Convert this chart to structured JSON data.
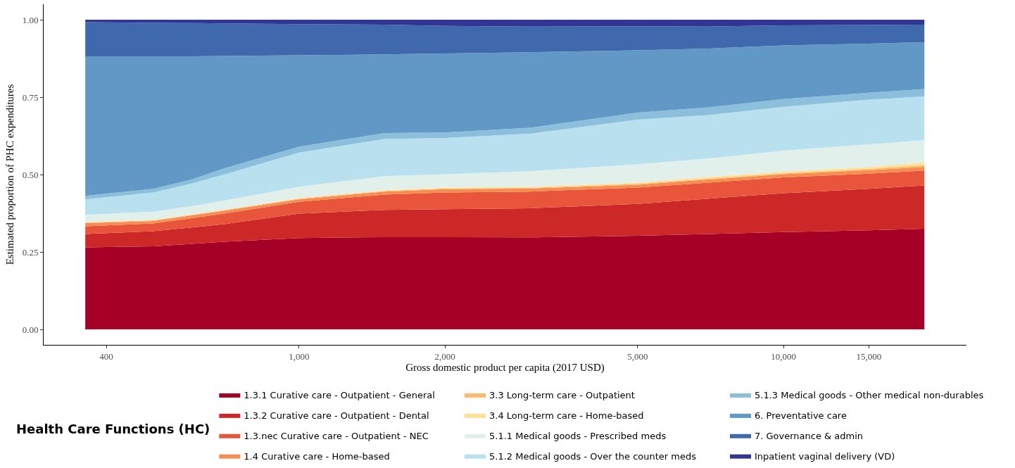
{
  "chart_data": {
    "type": "area",
    "stacked": true,
    "xlabel": "Gross domestic product per capita (2017 USD)",
    "ylabel": "Estimated proportion of PHC expenditures",
    "legend_title": "Health Care Functions (HC)",
    "legend": "bottom",
    "log": "x",
    "grid": false,
    "x": [
      362,
      500,
      600,
      700,
      1000,
      1500,
      2000,
      3000,
      5000,
      7000,
      10000,
      15000,
      19530
    ],
    "xlim": [
      297,
      23850
    ],
    "xticks": [
      400,
      {
        "value": 1000,
        "label": "1,000"
      },
      {
        "value": 2000,
        "label": "2,000"
      },
      {
        "value": 5000,
        "label": "5,000"
      },
      {
        "value": 10000,
        "label": "10,000"
      },
      {
        "value": 15000,
        "label": "15,000"
      }
    ],
    "ylim": [
      -0.05,
      1.05
    ],
    "yticks": [
      {
        "value": 0,
        "label": "0.00"
      },
      {
        "value": 0.25,
        "label": "0.25"
      },
      {
        "value": 0.5,
        "label": "0.50"
      },
      {
        "value": 0.75,
        "label": "0.75"
      },
      {
        "value": 1,
        "label": "1.00"
      }
    ],
    "series": [
      {
        "name": "1.3.1 Curative care - Outpatient - General",
        "color": "#a50026",
        "values": [
          0.265,
          0.268,
          0.276,
          0.283,
          0.295,
          0.298,
          0.298,
          0.297,
          0.302,
          0.308,
          0.314,
          0.32,
          0.325
        ]
      },
      {
        "name": "1.3.2 Curative care - Outpatient - Dental",
        "color": "#cc2827",
        "values": [
          0.043,
          0.049,
          0.053,
          0.057,
          0.079,
          0.088,
          0.09,
          0.094,
          0.103,
          0.114,
          0.126,
          0.134,
          0.14
        ]
      },
      {
        "name": "1.3.nec Curative care - Outpatient - NEC",
        "color": "#e8553a",
        "values": [
          0.025,
          0.025,
          0.03,
          0.034,
          0.038,
          0.049,
          0.054,
          0.054,
          0.053,
          0.052,
          0.051,
          0.049,
          0.048
        ]
      },
      {
        "name": "1.4 Curative care - Home-based",
        "color": "#f88d52",
        "values": [
          0.01,
          0.008,
          0.009,
          0.009,
          0.008,
          0.01,
          0.011,
          0.01,
          0.009,
          0.01,
          0.01,
          0.011,
          0.012
        ]
      },
      {
        "name": "3.3 Long-term care - Outpatient",
        "color": "#fdba6b",
        "values": [
          0.002,
          0.002,
          0.002,
          0.002,
          0.002,
          0.002,
          0.002,
          0.002,
          0.003,
          0.003,
          0.003,
          0.004,
          0.005
        ]
      },
      {
        "name": "3.4 Long-term care - Home-based",
        "color": "#fde196",
        "values": [
          0.001,
          0.001,
          0.001,
          0.001,
          0.002,
          0.002,
          0.003,
          0.003,
          0.004,
          0.005,
          0.005,
          0.006,
          0.009
        ]
      },
      {
        "name": "5.1.1 Medical goods - Prescribed meds",
        "color": "#e2f0ec",
        "values": [
          0.024,
          0.027,
          0.027,
          0.03,
          0.037,
          0.046,
          0.043,
          0.051,
          0.059,
          0.06,
          0.068,
          0.074,
          0.072
        ]
      },
      {
        "name": "5.1.2 Medical goods - Over the counter meds",
        "color": "#b8e0ee",
        "values": [
          0.05,
          0.062,
          0.073,
          0.084,
          0.11,
          0.12,
          0.117,
          0.121,
          0.144,
          0.14,
          0.142,
          0.144,
          0.141
        ]
      },
      {
        "name": "5.1.3 Medical goods - Other medical non-durables",
        "color": "#8cbfdc",
        "values": [
          0.011,
          0.012,
          0.013,
          0.02,
          0.019,
          0.019,
          0.018,
          0.019,
          0.023,
          0.025,
          0.025,
          0.022,
          0.024
        ]
      },
      {
        "name": "6. Preventative care",
        "color": "#6298c6",
        "values": [
          0.451,
          0.428,
          0.398,
          0.363,
          0.295,
          0.254,
          0.255,
          0.244,
          0.201,
          0.19,
          0.173,
          0.159,
          0.151
        ]
      },
      {
        "name": "7. Governance & admin",
        "color": "#4068ad",
        "values": [
          0.11,
          0.108,
          0.107,
          0.105,
          0.101,
          0.096,
          0.089,
          0.083,
          0.078,
          0.071,
          0.065,
          0.06,
          0.057
        ]
      },
      {
        "name": "Inpatient vaginal delivery (VD)",
        "color": "#313695",
        "values": [
          0.008,
          0.01,
          0.011,
          0.012,
          0.014,
          0.016,
          0.02,
          0.022,
          0.021,
          0.022,
          0.018,
          0.017,
          0.016
        ]
      }
    ]
  }
}
